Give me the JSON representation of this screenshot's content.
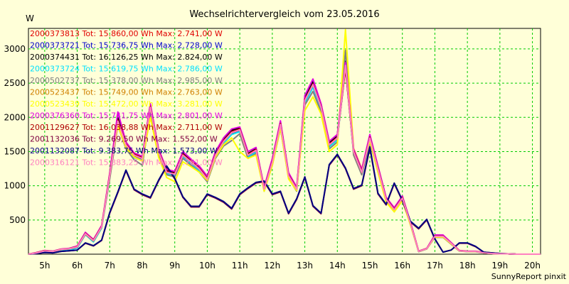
{
  "chart_data": {
    "type": "line",
    "title": "Wechselrichtervergleich vom 23.05.2016",
    "ylabel": "W",
    "xlabel": "",
    "footer": "SunnyReport pinxit",
    "xlim": [
      4.5,
      20.25
    ],
    "ylim": [
      0,
      3300
    ],
    "xticks": [
      5,
      6,
      7,
      8,
      9,
      10,
      11,
      12,
      13,
      14,
      15,
      16,
      17,
      18,
      19,
      20
    ],
    "xtick_labels": [
      "5h",
      "6h",
      "7h",
      "8h",
      "9h",
      "10h",
      "11h",
      "12h",
      "13h",
      "14h",
      "15h",
      "16h",
      "17h",
      "18h",
      "19h",
      "20h"
    ],
    "yticks": [
      500,
      1000,
      1500,
      2000,
      2500,
      3000
    ],
    "ytick_labels": [
      "500",
      "1000",
      "1500",
      "2000",
      "2500",
      "3000"
    ],
    "grid": true,
    "grid_color": "#00cc00",
    "legend_position": "top-left",
    "x": [
      4.5,
      4.75,
      5.0,
      5.25,
      5.5,
      5.75,
      6.0,
      6.25,
      6.5,
      6.75,
      7.0,
      7.25,
      7.5,
      7.75,
      8.0,
      8.25,
      8.5,
      8.75,
      9.0,
      9.25,
      9.5,
      9.75,
      10.0,
      10.25,
      10.5,
      10.75,
      11.0,
      11.25,
      11.5,
      11.75,
      12.0,
      12.25,
      12.5,
      12.75,
      13.0,
      13.25,
      13.5,
      13.75,
      14.0,
      14.25,
      14.5,
      14.75,
      15.0,
      15.25,
      15.5,
      15.75,
      16.0,
      16.25,
      16.5,
      16.75,
      17.0,
      17.25,
      17.5,
      17.75,
      18.0,
      18.25,
      18.5,
      18.75,
      19.0,
      19.25,
      19.5,
      19.75,
      20.0,
      20.25
    ],
    "series": [
      {
        "name": "2000373813 Tot: 15.860,00 Wh Max: 2.741,00 W",
        "color": "#e00000",
        "values": [
          0,
          20,
          50,
          40,
          70,
          80,
          110,
          300,
          200,
          400,
          1150,
          1950,
          1600,
          1450,
          1400,
          2150,
          1500,
          1200,
          1170,
          1450,
          1350,
          1250,
          1100,
          1450,
          1650,
          1780,
          1820,
          1450,
          1520,
          950,
          1350,
          1900,
          1150,
          950,
          2250,
          2480,
          2150,
          1600,
          1700,
          2750,
          1500,
          1200,
          1700,
          1250,
          800,
          650,
          820,
          450,
          40,
          80,
          260,
          260,
          160,
          50,
          40,
          40,
          20,
          10,
          5,
          5,
          0,
          0,
          0,
          0
        ]
      },
      {
        "name": "2000373721 Tot: 15.736,75 Wh Max: 2.728,00 W",
        "color": "#0000cc",
        "values": [
          0,
          20,
          45,
          40,
          68,
          78,
          105,
          295,
          195,
          395,
          1140,
          1930,
          1590,
          1440,
          1390,
          2140,
          1490,
          1190,
          1165,
          1440,
          1340,
          1240,
          1090,
          1440,
          1640,
          1770,
          1810,
          1440,
          1510,
          945,
          1340,
          1890,
          1140,
          945,
          2240,
          2470,
          2140,
          1590,
          1690,
          2730,
          1490,
          1190,
          1690,
          1240,
          795,
          645,
          815,
          445,
          40,
          80,
          255,
          255,
          155,
          50,
          40,
          40,
          20,
          10,
          5,
          5,
          0,
          0,
          0,
          0
        ]
      },
      {
        "name": "2000374431 Tot: 16.126,25 Wh Max: 2.824,00 W",
        "color": "#000000",
        "values": [
          0,
          22,
          52,
          42,
          72,
          82,
          115,
          310,
          210,
          410,
          1170,
          1990,
          1630,
          1470,
          1420,
          2190,
          1520,
          1220,
          1190,
          1470,
          1370,
          1270,
          1120,
          1470,
          1680,
          1810,
          1850,
          1470,
          1540,
          965,
          1370,
          1930,
          1170,
          965,
          2290,
          2530,
          2190,
          1630,
          1730,
          2820,
          1520,
          1220,
          1730,
          1270,
          815,
          660,
          835,
          460,
          42,
          82,
          270,
          270,
          165,
          52,
          42,
          42,
          22,
          10,
          5,
          5,
          0,
          0,
          0,
          0
        ]
      },
      {
        "name": "2000373724 Tot: 15.619,75 Wh Max: 2.786,00 W",
        "color": "#00e0ff",
        "values": [
          0,
          15,
          30,
          25,
          45,
          60,
          90,
          285,
          180,
          380,
          1110,
          1900,
          1560,
          1410,
          1370,
          2110,
          1470,
          1180,
          1150,
          1420,
          1320,
          1220,
          1080,
          1420,
          1620,
          1750,
          1790,
          1420,
          1490,
          935,
          1320,
          1870,
          1130,
          935,
          2210,
          2440,
          2110,
          1570,
          1670,
          2780,
          1470,
          1180,
          1670,
          1230,
          785,
          635,
          805,
          440,
          38,
          78,
          250,
          250,
          150,
          48,
          38,
          38,
          18,
          10,
          5,
          5,
          0,
          0,
          0,
          0
        ]
      },
      {
        "name": "2000502737 Tot: 15.378,00 Wh Max: 2.985,00 W",
        "color": "#808080",
        "values": [
          0,
          18,
          48,
          38,
          66,
          76,
          100,
          290,
          190,
          390,
          1100,
          1880,
          1540,
          1380,
          1300,
          2060,
          1450,
          1160,
          1130,
          1400,
          1300,
          1200,
          1060,
          1400,
          1580,
          1660,
          1760,
          1400,
          1470,
          920,
          1300,
          1840,
          1110,
          920,
          2180,
          2380,
          2080,
          1540,
          1640,
          2980,
          1450,
          1160,
          1640,
          1200,
          770,
          620,
          790,
          430,
          36,
          76,
          245,
          245,
          145,
          46,
          36,
          36,
          18,
          10,
          5,
          5,
          0,
          0,
          0,
          0
        ]
      },
      {
        "name": "2000523437 Tot: 15.749,00 Wh Max: 2.763,00 W",
        "color": "#d08000",
        "values": [
          0,
          20,
          50,
          40,
          70,
          80,
          108,
          298,
          198,
          398,
          1145,
          1940,
          1595,
          1445,
          1395,
          2145,
          1495,
          1195,
          1168,
          1445,
          1345,
          1245,
          1095,
          1445,
          1645,
          1775,
          1815,
          1445,
          1515,
          948,
          1345,
          1895,
          1145,
          948,
          2245,
          2475,
          2145,
          1595,
          1695,
          2760,
          1495,
          1195,
          1695,
          1245,
          798,
          648,
          818,
          448,
          40,
          80,
          258,
          258,
          158,
          50,
          40,
          40,
          20,
          10,
          5,
          5,
          0,
          0,
          0,
          0
        ]
      },
      {
        "name": "2000523439 Tot: 15.472,00 Wh Max: 3.281,00 W",
        "color": "#ffff00",
        "values": [
          0,
          20,
          50,
          40,
          70,
          80,
          110,
          300,
          200,
          400,
          1180,
          1880,
          1560,
          1420,
          1360,
          2000,
          1420,
          1120,
          1060,
          1350,
          1280,
          1200,
          1080,
          1420,
          1600,
          1700,
          1500,
          1400,
          1450,
          920,
          1300,
          1850,
          1100,
          930,
          2100,
          2300,
          2050,
          1500,
          1600,
          3281,
          1550,
          1250,
          1650,
          1200,
          760,
          620,
          780,
          430,
          40,
          80,
          250,
          250,
          150,
          50,
          40,
          40,
          20,
          10,
          5,
          5,
          0,
          0,
          0,
          0
        ]
      },
      {
        "name": "2000376360 Tot: 15.741,75 Wh Max: 2.801,00 W",
        "color": "#e000e0",
        "values": [
          0,
          25,
          55,
          45,
          75,
          85,
          120,
          320,
          215,
          420,
          1190,
          2080,
          1640,
          1480,
          1430,
          2200,
          1540,
          1240,
          1210,
          1500,
          1390,
          1290,
          1140,
          1500,
          1700,
          1830,
          1860,
          1500,
          1560,
          980,
          1400,
          1950,
          1190,
          980,
          2320,
          2560,
          2200,
          1650,
          1750,
          2800,
          1540,
          1240,
          1750,
          1290,
          830,
          680,
          850,
          470,
          45,
          85,
          280,
          280,
          170,
          55,
          45,
          45,
          25,
          10,
          5,
          5,
          0,
          0,
          0,
          0
        ]
      },
      {
        "name": "2001129627 Tot: 16.038,88 Wh Max: 2.711,00 W",
        "color": "#b00000",
        "values": [
          0,
          22,
          52,
          42,
          72,
          82,
          112,
          305,
          205,
          405,
          1160,
          1960,
          1610,
          1460,
          1410,
          2160,
          1510,
          1210,
          1180,
          1460,
          1360,
          1260,
          1110,
          1460,
          1660,
          1790,
          1830,
          1460,
          1530,
          958,
          1360,
          1910,
          1160,
          958,
          2260,
          2490,
          2160,
          1610,
          1710,
          2710,
          1510,
          1210,
          1710,
          1260,
          808,
          658,
          828,
          455,
          42,
          82,
          265,
          265,
          162,
          52,
          42,
          42,
          22,
          10,
          5,
          5,
          0,
          0,
          0,
          0
        ]
      },
      {
        "name": "2001132036 Tot: 9.269,50 Wh Max: 1.552,00 W",
        "color": "#800040",
        "values": [
          0,
          10,
          25,
          20,
          40,
          50,
          60,
          160,
          120,
          200,
          600,
          900,
          1220,
          940,
          870,
          820,
          1070,
          1280,
          1100,
          830,
          690,
          690,
          870,
          820,
          760,
          660,
          870,
          960,
          1040,
          1060,
          870,
          910,
          590,
          800,
          1120,
          700,
          590,
          1300,
          1450,
          1250,
          950,
          1000,
          1550,
          880,
          720,
          1030,
          780,
          470,
          370,
          500,
          220,
          30,
          60,
          160,
          160,
          110,
          30,
          20,
          10,
          5,
          0,
          0,
          0,
          0
        ]
      },
      {
        "name": "2001132087 Tot: 9.383,75 Wh Max: 1.573,00 W",
        "color": "#000080",
        "values": [
          0,
          10,
          25,
          20,
          40,
          50,
          60,
          165,
          125,
          205,
          610,
          910,
          1230,
          950,
          880,
          830,
          1080,
          1290,
          1110,
          840,
          700,
          700,
          880,
          830,
          770,
          670,
          880,
          970,
          1050,
          1070,
          880,
          920,
          600,
          810,
          1130,
          710,
          600,
          1310,
          1460,
          1260,
          960,
          1010,
          1570,
          890,
          730,
          1040,
          790,
          480,
          380,
          510,
          225,
          30,
          60,
          165,
          165,
          115,
          30,
          20,
          10,
          5,
          0,
          0,
          0,
          0
        ]
      },
      {
        "name": "2000316121 Tot: 15.883,25 Wh Max: 2.761,00 W",
        "color": "#ff80c0",
        "values": [
          0,
          20,
          48,
          40,
          70,
          80,
          108,
          300,
          198,
          398,
          1148,
          1945,
          1598,
          1448,
          1398,
          2148,
          1498,
          1198,
          1170,
          1448,
          1348,
          1248,
          1098,
          1448,
          1648,
          1778,
          1818,
          1448,
          1518,
          950,
          1348,
          1898,
          1148,
          950,
          2248,
          2478,
          2148,
          1598,
          1698,
          2760,
          1498,
          1198,
          1698,
          1248,
          800,
          650,
          820,
          450,
          40,
          80,
          260,
          260,
          160,
          50,
          40,
          40,
          20,
          10,
          5,
          5,
          0,
          0,
          0,
          0
        ]
      }
    ]
  }
}
